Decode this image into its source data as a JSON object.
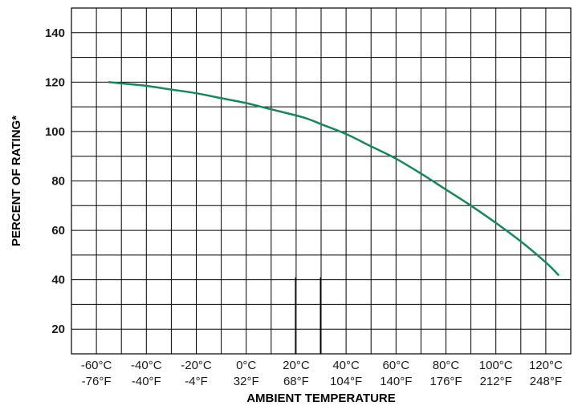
{
  "chart_data": {
    "type": "line",
    "title": "",
    "xlabel": "AMBIENT TEMPERATURE",
    "ylabel": "PERCENT OF RATING*",
    "x_ticks": [
      {
        "c": -60,
        "label_c": "-60°C",
        "label_f": "-76°F"
      },
      {
        "c": -40,
        "label_c": "-40°C",
        "label_f": "-40°F"
      },
      {
        "c": -20,
        "label_c": "-20°C",
        "label_f": "-4°F"
      },
      {
        "c": 0,
        "label_c": "0°C",
        "label_f": "32°F"
      },
      {
        "c": 20,
        "label_c": "20°C",
        "label_f": "68°F"
      },
      {
        "c": 40,
        "label_c": "40°C",
        "label_f": "104°F"
      },
      {
        "c": 60,
        "label_c": "60°C",
        "label_f": "140°F"
      },
      {
        "c": 80,
        "label_c": "80°C",
        "label_f": "176°F"
      },
      {
        "c": 100,
        "label_c": "100°C",
        "label_f": "212°F"
      },
      {
        "c": 120,
        "label_c": "120°C",
        "label_f": "248°F"
      }
    ],
    "y_ticks": [
      20,
      40,
      60,
      80,
      100,
      120,
      140
    ],
    "xlim": [
      -70,
      130
    ],
    "ylim": [
      10,
      150
    ],
    "grid": true,
    "series": [
      {
        "color": "#138a5a",
        "x": [
          -55,
          -50,
          -40,
          -30,
          -20,
          -10,
          0,
          10,
          20,
          25,
          30,
          40,
          50,
          60,
          70,
          80,
          90,
          100,
          110,
          120,
          125
        ],
        "y": [
          120,
          119.5,
          118.5,
          117,
          115.5,
          113.5,
          111.5,
          109,
          106.5,
          105,
          103,
          99,
          94,
          89,
          83,
          76.5,
          70,
          63,
          55.5,
          47,
          42
        ]
      }
    ]
  }
}
